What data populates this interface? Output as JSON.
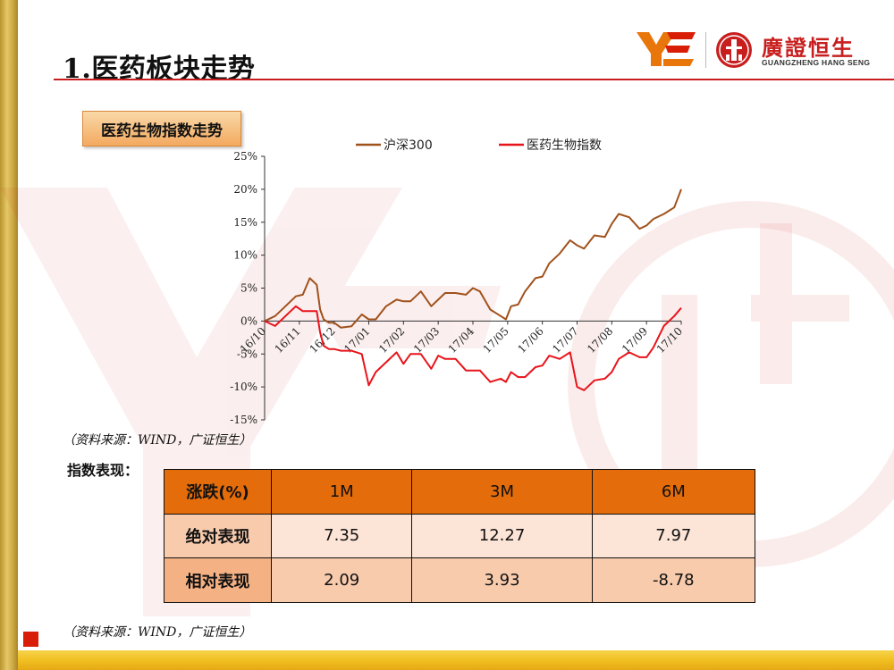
{
  "slide": {
    "title": "1.医药板块走势",
    "brand": {
      "cn_name": "廣證恒生",
      "en_name": "GUANGZHENG HANG SENG",
      "logo_ye": "ye-logo",
      "logo_seal": "seal-logo",
      "accent_color": "#c81e1e",
      "orange_color": "#e46c0a"
    },
    "index_section_label": "医药生物指数走势",
    "chart_source": "（资料来源：WIND，广证恒生）",
    "performance_label": "指数表现：",
    "table_source": "（资料来源：WIND，广证恒生）"
  },
  "chart_data": {
    "type": "line",
    "title": "",
    "xlabel": "",
    "ylabel": "",
    "ylim": [
      -15,
      25
    ],
    "yticks": [
      "25%",
      "20%",
      "15%",
      "10%",
      "5%",
      "0%",
      "-5%",
      "-10%",
      "-15%"
    ],
    "ytick_values": [
      25,
      20,
      15,
      10,
      5,
      0,
      -5,
      -10,
      -15
    ],
    "xticks": [
      "16/10",
      "16/11",
      "16/12",
      "17/01",
      "17/02",
      "17/03",
      "17/04",
      "17/05",
      "17/06",
      "17/07",
      "17/08",
      "17/09",
      "17/10"
    ],
    "legend_position": "top",
    "grid": false,
    "series": [
      {
        "name": "沪深300",
        "color": "#a0521c",
        "x": [
          0,
          0.3,
          0.6,
          0.9,
          1.1,
          1.3,
          1.5,
          1.6,
          1.7,
          1.85,
          2.0,
          2.2,
          2.5,
          2.8,
          3.0,
          3.2,
          3.5,
          3.8,
          4.0,
          4.2,
          4.5,
          4.8,
          5.0,
          5.2,
          5.5,
          5.8,
          6.0,
          6.2,
          6.5,
          6.8,
          6.95,
          7.1,
          7.3,
          7.5,
          7.8,
          8.0,
          8.2,
          8.5,
          8.8,
          9.0,
          9.2,
          9.5,
          9.8,
          10.0,
          10.2,
          10.5,
          10.8,
          11.0,
          11.2,
          11.5,
          11.8,
          12.0
        ],
        "values": [
          0,
          1.0,
          2.0,
          3.0,
          4.5,
          6.5,
          5.0,
          2.5,
          0.5,
          -0.5,
          -1.0,
          -0.5,
          -0.8,
          0.5,
          1.0,
          0.5,
          2.0,
          2.5,
          3.5,
          3.0,
          4.0,
          3.0,
          3.5,
          4.0,
          3.5,
          4.5,
          5.0,
          4.0,
          2.5,
          1.0,
          0.0,
          1.5,
          3.0,
          4.5,
          6.0,
          7.5,
          9.0,
          10.0,
          11.5,
          12.0,
          11.0,
          12.5,
          13.5,
          15.0,
          16.0,
          15.0,
          14.5,
          14.5,
          15.0,
          17.0,
          17.5,
          20.0
        ]
      },
      {
        "name": "医药生物指数",
        "color": "#e8141b",
        "x": [
          0,
          0.3,
          0.6,
          0.9,
          1.1,
          1.3,
          1.5,
          1.6,
          1.7,
          1.85,
          2.0,
          2.2,
          2.5,
          2.8,
          3.0,
          3.2,
          3.5,
          3.8,
          4.0,
          4.2,
          4.5,
          4.8,
          5.0,
          5.2,
          5.5,
          5.8,
          6.0,
          6.2,
          6.5,
          6.8,
          6.95,
          7.1,
          7.3,
          7.5,
          7.8,
          8.0,
          8.2,
          8.5,
          8.8,
          9.0,
          9.2,
          9.5,
          9.8,
          10.0,
          10.2,
          10.5,
          10.8,
          11.0,
          11.2,
          11.5,
          11.8,
          12.0
        ],
        "values": [
          0,
          -0.5,
          0.5,
          1.5,
          2.0,
          1.5,
          1.0,
          -1.0,
          -3.5,
          -4.5,
          -5.0,
          -4.0,
          -4.5,
          -5.5,
          -9.0,
          -7.5,
          -6.5,
          -5.5,
          -6.0,
          -5.0,
          -5.5,
          -6.5,
          -5.0,
          -6.0,
          -6.5,
          -7.0,
          -7.5,
          -8.0,
          -8.5,
          -8.5,
          -9.5,
          -8.5,
          -8.0,
          -8.5,
          -7.5,
          -6.0,
          -5.0,
          -6.0,
          -5.5,
          -9.5,
          -10.5,
          -9.5,
          -8.0,
          -7.5,
          -6.0,
          -5.5,
          -5.0,
          -5.5,
          -4.5,
          0.0,
          1.0,
          2.0
        ]
      }
    ]
  },
  "table": {
    "headers": [
      "涨跌(%)",
      "1M",
      "3M",
      "6M"
    ],
    "rows": [
      {
        "label": "绝对表现",
        "values": [
          "7.35",
          "12.27",
          "7.97"
        ]
      },
      {
        "label": "相对表现",
        "values": [
          "2.09",
          "3.93",
          "-8.78"
        ]
      }
    ]
  }
}
